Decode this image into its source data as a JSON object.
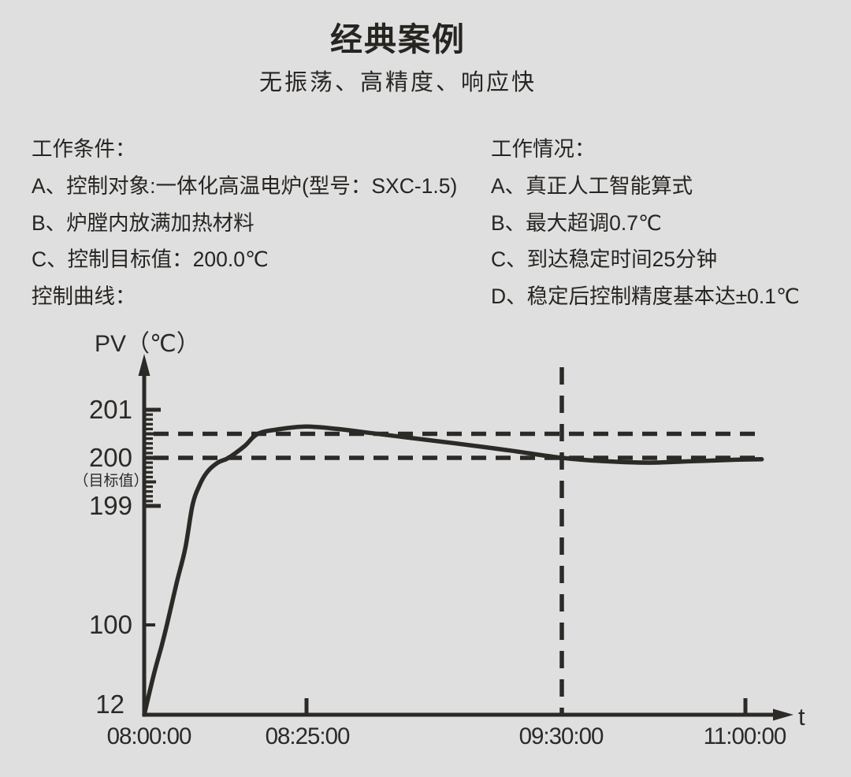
{
  "colors": {
    "background": "#e0dfe0",
    "ink": "#2b2a27"
  },
  "page": {
    "title": "经典案例",
    "subtitle": "无振荡、高精度、响应快"
  },
  "columns": {
    "left": {
      "heading": "工作条件：",
      "items": [
        "A、控制对象:一体化高温电炉(型号：SXC-1.5)",
        "B、炉膛内放满加热材料",
        "C、控制目标值：200.0℃",
        "控制曲线："
      ]
    },
    "right": {
      "heading": "工作情况：",
      "items": [
        "A、真正人工智能算式",
        "B、最大超调0.7℃",
        "C、到达稳定时间25分钟",
        "D、稳定后控制精度基本达±0.1℃"
      ]
    }
  },
  "chart_data": {
    "type": "line",
    "title": "",
    "xlabel": "t",
    "ylabel": "PV（℃）",
    "x_axis": {
      "label": "t",
      "tick_labels": [
        "08:00:00",
        "08:25:00",
        "09:30:00",
        "11:00:00"
      ]
    },
    "y_axis": {
      "label": "PV（℃）",
      "tick_labels": [
        "201",
        "200",
        "199",
        "100",
        "12"
      ],
      "target_note": "（目标值）",
      "minor_ticks": {
        "range": [
          199,
          201
        ],
        "step": 0.1
      }
    },
    "target_value": 200.0,
    "guides": {
      "horizontal_values": [
        200.5,
        200.0
      ],
      "vertical_time": "09:30:00"
    },
    "series": [
      {
        "name": "PV",
        "points": [
          [
            "08:00:00",
            12
          ],
          [
            "08:01:30",
            52
          ],
          [
            "08:02:40",
            79
          ],
          [
            "08:03:30",
            100
          ],
          [
            "08:05:00",
            135
          ],
          [
            "08:06:20",
            164
          ],
          [
            "08:07:25",
            199
          ],
          [
            "08:08:25",
            199.4
          ],
          [
            "08:09:40",
            199.7
          ],
          [
            "08:11:20",
            199.9
          ],
          [
            "08:13:00",
            200.0
          ],
          [
            "08:15:30",
            200.25
          ],
          [
            "08:17:30",
            200.5
          ],
          [
            "08:21:00",
            200.6
          ],
          [
            "08:25:00",
            200.65
          ],
          [
            "08:33:00",
            200.6
          ],
          [
            "08:40:00",
            200.53
          ],
          [
            "08:51:00",
            200.42
          ],
          [
            "09:03:00",
            200.3
          ],
          [
            "09:17:00",
            200.15
          ],
          [
            "09:30:00",
            200.0
          ],
          [
            "09:51:00",
            199.93
          ],
          [
            "10:12:00",
            199.9
          ],
          [
            "10:34:00",
            199.93
          ],
          [
            "10:55:00",
            199.96
          ],
          [
            "11:08:00",
            199.97
          ]
        ]
      }
    ]
  }
}
